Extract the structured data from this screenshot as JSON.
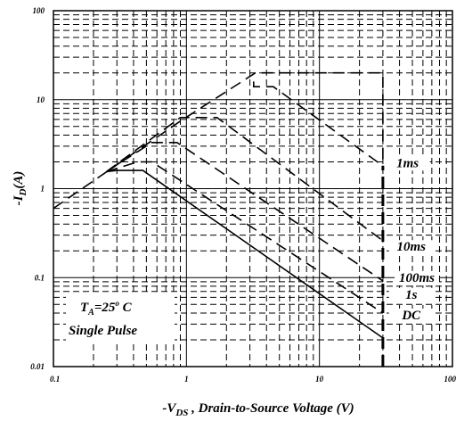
{
  "chart_data": {
    "type": "line",
    "title": "",
    "xlabel": "-V",
    "xlabel_sub": "DS",
    "xlabel_rest": " , Drain-to-Source Voltage (V)",
    "ylabel": "-I",
    "ylabel_sub": "D",
    "ylabel_rest": "(A)",
    "x_scale": "log",
    "y_scale": "log",
    "xlim": [
      0.1,
      100
    ],
    "ylim": [
      0.01,
      100
    ],
    "grid": true,
    "x_ticks": [
      {
        "value": 0.1,
        "label": "0.1"
      },
      {
        "value": 1,
        "label": "1"
      },
      {
        "value": 10,
        "label": "10"
      },
      {
        "value": 100,
        "label": "100"
      }
    ],
    "y_ticks": [
      {
        "value": 0.01,
        "label": "0.01"
      },
      {
        "value": 0.1,
        "label": "0.1"
      },
      {
        "value": 1,
        "label": "1"
      },
      {
        "value": 10,
        "label": "10"
      },
      {
        "value": 100,
        "label": "100"
      }
    ],
    "series": [
      {
        "name": "1ms",
        "style": "dashed",
        "points": [
          [
            0.1,
            0.6
          ],
          [
            0.91,
            5.8
          ],
          [
            3.3,
            20
          ],
          [
            30,
            20
          ],
          [
            30,
            1.8
          ]
        ]
      },
      {
        "name": "10ms",
        "style": "dashed",
        "points": [
          [
            0.25,
            1.55
          ],
          [
            0.9,
            6.3
          ],
          [
            1.7,
            6.3
          ],
          [
            30,
            0.26
          ]
        ]
      },
      {
        "name": "100ms",
        "style": "dashed",
        "points": [
          [
            0.25,
            1.55
          ],
          [
            0.55,
            3.3
          ],
          [
            0.85,
            3.3
          ],
          [
            30,
            0.092
          ]
        ]
      },
      {
        "name": "1s",
        "style": "dashed",
        "points": [
          [
            0.25,
            1.55
          ],
          [
            0.43,
            2.0
          ],
          [
            0.55,
            2.0
          ],
          [
            30,
            0.04
          ]
        ]
      },
      {
        "name": "DC",
        "style": "solid",
        "points": [
          [
            0.25,
            1.55
          ],
          [
            0.3,
            1.6
          ],
          [
            0.47,
            1.6
          ],
          [
            30,
            0.021
          ]
        ]
      },
      {
        "name": "",
        "style": "thick-dashed",
        "points": [
          [
            30,
            0.01
          ],
          [
            30,
            1.8
          ]
        ]
      },
      {
        "name": "",
        "style": "dashed",
        "points": [
          [
            3.2,
            16
          ],
          [
            3.2,
            14
          ],
          [
            4.5,
            14
          ],
          [
            30,
            1.8
          ]
        ]
      }
    ],
    "annotations": [
      {
        "text": "1ms",
        "x": 46,
        "y": 1.75,
        "anchor": "middle"
      },
      {
        "text": "10ms",
        "x": 49,
        "y": 0.2,
        "anchor": "middle"
      },
      {
        "text": "100ms",
        "x": 54,
        "y": 0.09,
        "anchor": "middle"
      },
      {
        "text": "1s",
        "x": 49,
        "y": 0.058,
        "anchor": "middle"
      },
      {
        "text": "DC",
        "x": 49,
        "y": 0.034,
        "anchor": "middle"
      }
    ],
    "condition_label": {
      "prefix": "T",
      "sub": "A",
      "rest": "=25",
      "sup": "o",
      "unit": " C"
    },
    "pulse_label": "Single Pulse"
  }
}
